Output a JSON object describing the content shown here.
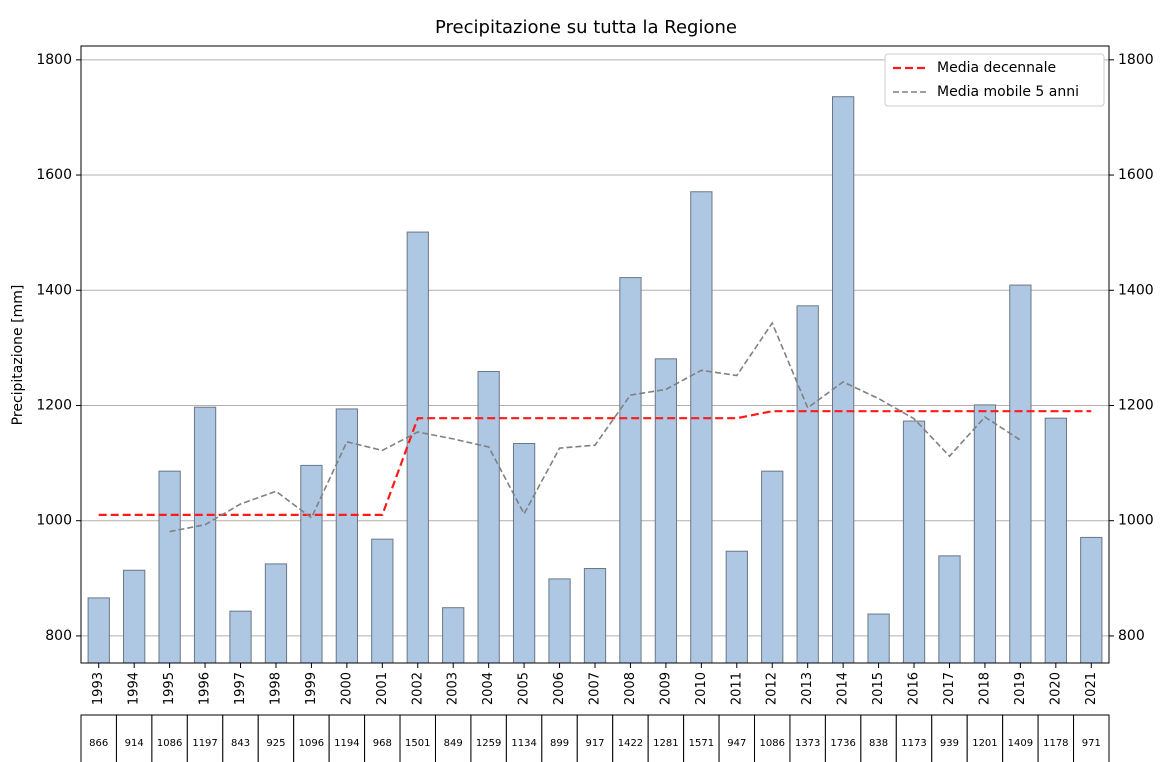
{
  "chart_data": {
    "type": "bar",
    "title": "Precipitazione su tutta la Regione",
    "y_label": "Precipitazione [mm]",
    "categories": [
      "1993",
      "1994",
      "1995",
      "1996",
      "1997",
      "1998",
      "1999",
      "2000",
      "2001",
      "2002",
      "2003",
      "2004",
      "2005",
      "2006",
      "2007",
      "2008",
      "2009",
      "2010",
      "2011",
      "2012",
      "2013",
      "2014",
      "2015",
      "2016",
      "2017",
      "2018",
      "2019",
      "2020",
      "2021"
    ],
    "series": [
      {
        "type": "bar",
        "color": "#aec7e3",
        "values": [
          866,
          914,
          1086,
          1197,
          843,
          925,
          1096,
          1194,
          968,
          1501,
          849,
          1259,
          1134,
          899,
          917,
          1422,
          1281,
          1571,
          947,
          1086,
          1373,
          1736,
          838,
          1173,
          939,
          1201,
          1409,
          1178,
          971
        ]
      },
      {
        "type": "line",
        "name": "Media decennale",
        "color": "#ff1a1a",
        "values": [
          1010,
          1010,
          1010,
          1010,
          1010,
          1010,
          1010,
          1010,
          1010,
          1178,
          1178,
          1178,
          1178,
          1178,
          1178,
          1178,
          1178,
          1178,
          1178,
          1190,
          1190,
          1190,
          1190,
          1190,
          1190,
          1190,
          1190,
          1190,
          1190
        ]
      },
      {
        "type": "line",
        "name": "Media mobile 5 anni",
        "color": "#808080",
        "values": [
          null,
          null,
          981,
          993,
          1029,
          1051,
          1005,
          1137,
          1122,
          1154,
          1142,
          1128,
          1012,
          1126,
          1131,
          1218,
          1228,
          1261,
          1252,
          1343,
          1196,
          1241,
          1212,
          1177,
          1112,
          1180,
          1140,
          null,
          null
        ]
      }
    ],
    "ylim": [
      753,
      1824
    ],
    "yticks": [
      800,
      1000,
      1200,
      1400,
      1600,
      1800
    ],
    "grid": true,
    "legend": "upper right",
    "table": true
  }
}
